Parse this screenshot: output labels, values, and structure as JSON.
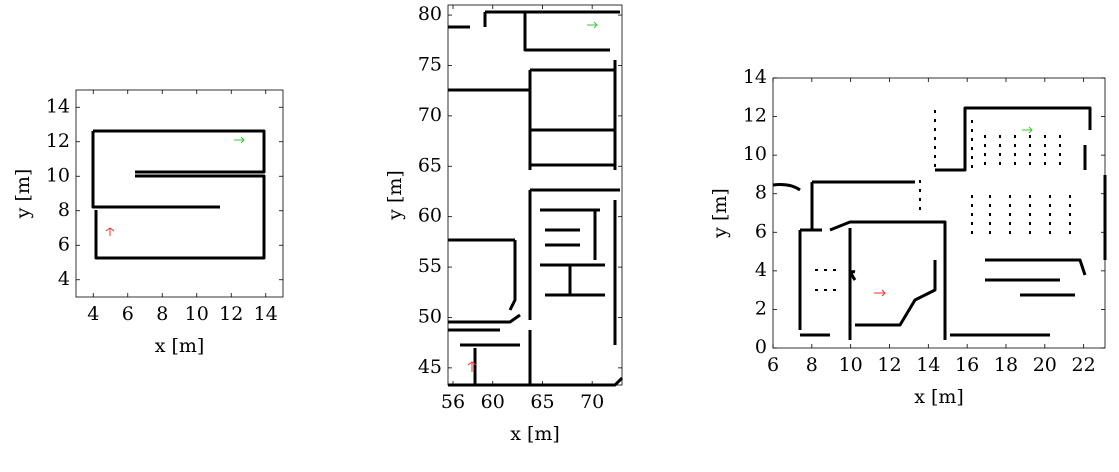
{
  "chart_data": [
    {
      "type": "map",
      "xlabel": "x [m]",
      "ylabel": "y [m]",
      "xlim": [
        3,
        15
      ],
      "ylim": [
        3,
        15
      ],
      "xticks": [
        4,
        6,
        8,
        10,
        12,
        14
      ],
      "yticks": [
        4,
        6,
        8,
        10,
        12,
        14
      ]
    },
    {
      "type": "map",
      "xlabel": "x [m]",
      "ylabel": "y [m]",
      "xlim": [
        55.5,
        73
      ],
      "ylim": [
        43.3,
        81
      ],
      "xticks": [
        56,
        60,
        65,
        70
      ],
      "yticks": [
        45,
        50,
        55,
        60,
        65,
        70,
        75,
        80
      ]
    },
    {
      "type": "map",
      "xlabel": "x [m]",
      "ylabel": "y [m]",
      "xlim": [
        6,
        23.1
      ],
      "ylim": [
        0,
        14
      ],
      "xticks": [
        6,
        8,
        10,
        12,
        14,
        16,
        18,
        20,
        22
      ],
      "yticks": [
        0,
        2,
        4,
        6,
        8,
        10,
        12,
        14
      ]
    }
  ]
}
